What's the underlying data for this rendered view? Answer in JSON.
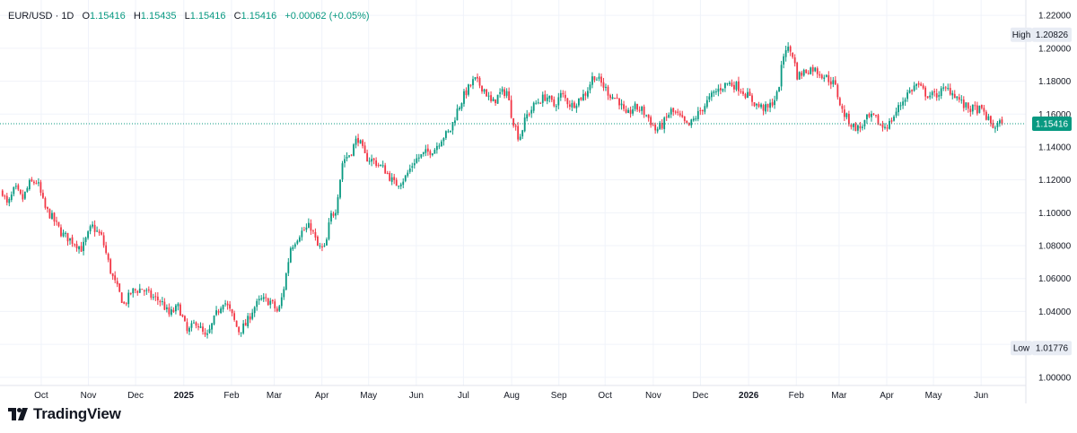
{
  "header": {
    "symbol": "EUR/USD",
    "separator": "·",
    "interval": "1D",
    "open_label": "O",
    "open": "1.15416",
    "high_label": "H",
    "high": "1.15435",
    "low_label": "L",
    "low": "1.15416",
    "close_label": "C",
    "close": "1.15416",
    "change": "+0.00062 (+0.05%)"
  },
  "brand": {
    "name": "TradingView",
    "icon": "tradingview-logo-icon"
  },
  "markers": {
    "high_label": "High",
    "high_value": "1.20826",
    "low_label": "Low",
    "low_value": "1.01776",
    "last_value": "1.15416"
  },
  "colors": {
    "up": "#089981",
    "down": "#F23645",
    "price_line": "#089981",
    "grid": "#F0F3FA",
    "tag_bg": "#E8ECF4"
  },
  "chart_data": {
    "type": "candlestick",
    "title": "EUR/USD",
    "interval": "1D",
    "ylim": [
      0.995,
      1.225
    ],
    "y_ticks": [
      "1.22000",
      "1.20000",
      "1.18000",
      "1.16000",
      "1.14000",
      "1.12000",
      "1.10000",
      "1.08000",
      "1.06000",
      "1.04000",
      "1.02000",
      "1.00000"
    ],
    "x_labels": [
      {
        "label": "Oct",
        "t": 0.078
      },
      {
        "label": "Nov",
        "t": 0.173
      },
      {
        "label": "Dec",
        "t": 0.268
      },
      {
        "label": "2025",
        "t": 0.365,
        "bold": true
      },
      {
        "label": "Feb",
        "t": 0.461
      },
      {
        "label": "Mar",
        "t": 0.547
      },
      {
        "label": "Apr",
        "t": 0.643
      },
      {
        "label": "May",
        "t": 0.737
      },
      {
        "label": "Jun",
        "t": 0.833
      },
      {
        "label": "Jul",
        "t": 0.928
      },
      {
        "label": "Aug",
        "t": 1.025
      },
      {
        "label": "Sep",
        "t": 1.12
      },
      {
        "label": "Oct",
        "t": 1.213
      },
      {
        "label": "Nov",
        "t": 1.31
      },
      {
        "label": "Dec",
        "t": 1.405
      },
      {
        "label": "2026",
        "t": 1.502,
        "bold": true
      },
      {
        "label": "Feb",
        "t": 1.598
      },
      {
        "label": "Mar",
        "t": 1.684
      },
      {
        "label": "Apr",
        "t": 1.78
      },
      {
        "label": "May",
        "t": 1.874
      },
      {
        "label": "Jun",
        "t": 1.97
      }
    ],
    "t_range": [
      -0.005,
      2.06
    ],
    "path_points": [
      [
        0.0,
        1.113
      ],
      [
        0.01,
        1.104
      ],
      [
        0.025,
        1.115
      ],
      [
        0.04,
        1.108
      ],
      [
        0.055,
        1.118
      ],
      [
        0.07,
        1.119
      ],
      [
        0.085,
        1.103
      ],
      [
        0.1,
        1.097
      ],
      [
        0.12,
        1.087
      ],
      [
        0.145,
        1.082
      ],
      [
        0.16,
        1.078
      ],
      [
        0.18,
        1.092
      ],
      [
        0.2,
        1.085
      ],
      [
        0.22,
        1.062
      ],
      [
        0.245,
        1.044
      ],
      [
        0.26,
        1.052
      ],
      [
        0.28,
        1.054
      ],
      [
        0.3,
        1.049
      ],
      [
        0.32,
        1.046
      ],
      [
        0.335,
        1.038
      ],
      [
        0.355,
        1.043
      ],
      [
        0.372,
        1.027
      ],
      [
        0.39,
        1.034
      ],
      [
        0.41,
        1.023
      ],
      [
        0.43,
        1.038
      ],
      [
        0.445,
        1.047
      ],
      [
        0.46,
        1.039
      ],
      [
        0.475,
        1.028
      ],
      [
        0.49,
        1.032
      ],
      [
        0.505,
        1.042
      ],
      [
        0.52,
        1.047
      ],
      [
        0.54,
        1.046
      ],
      [
        0.555,
        1.039
      ],
      [
        0.565,
        1.052
      ],
      [
        0.58,
        1.079
      ],
      [
        0.6,
        1.088
      ],
      [
        0.62,
        1.092
      ],
      [
        0.635,
        1.079
      ],
      [
        0.65,
        1.078
      ],
      [
        0.66,
        1.098
      ],
      [
        0.67,
        1.101
      ],
      [
        0.685,
        1.132
      ],
      [
        0.7,
        1.136
      ],
      [
        0.715,
        1.146
      ],
      [
        0.73,
        1.134
      ],
      [
        0.75,
        1.131
      ],
      [
        0.77,
        1.126
      ],
      [
        0.79,
        1.117
      ],
      [
        0.81,
        1.121
      ],
      [
        0.83,
        1.132
      ],
      [
        0.85,
        1.136
      ],
      [
        0.87,
        1.139
      ],
      [
        0.885,
        1.146
      ],
      [
        0.9,
        1.149
      ],
      [
        0.915,
        1.162
      ],
      [
        0.93,
        1.172
      ],
      [
        0.95,
        1.181
      ],
      [
        0.97,
        1.175
      ],
      [
        0.985,
        1.166
      ],
      [
        1.0,
        1.172
      ],
      [
        1.015,
        1.174
      ],
      [
        1.025,
        1.159
      ],
      [
        1.04,
        1.145
      ],
      [
        1.055,
        1.159
      ],
      [
        1.075,
        1.167
      ],
      [
        1.095,
        1.171
      ],
      [
        1.11,
        1.165
      ],
      [
        1.125,
        1.172
      ],
      [
        1.145,
        1.165
      ],
      [
        1.16,
        1.169
      ],
      [
        1.175,
        1.173
      ],
      [
        1.19,
        1.184
      ],
      [
        1.21,
        1.177
      ],
      [
        1.225,
        1.171
      ],
      [
        1.24,
        1.169
      ],
      [
        1.255,
        1.158
      ],
      [
        1.27,
        1.164
      ],
      [
        1.285,
        1.163
      ],
      [
        1.3,
        1.158
      ],
      [
        1.315,
        1.15
      ],
      [
        1.33,
        1.154
      ],
      [
        1.345,
        1.162
      ],
      [
        1.36,
        1.159
      ],
      [
        1.38,
        1.152
      ],
      [
        1.395,
        1.158
      ],
      [
        1.415,
        1.166
      ],
      [
        1.43,
        1.172
      ],
      [
        1.445,
        1.176
      ],
      [
        1.46,
        1.179
      ],
      [
        1.48,
        1.177
      ],
      [
        1.5,
        1.171
      ],
      [
        1.52,
        1.165
      ],
      [
        1.54,
        1.163
      ],
      [
        1.56,
        1.172
      ],
      [
        1.575,
        1.201
      ],
      [
        1.59,
        1.197
      ],
      [
        1.6,
        1.183
      ],
      [
        1.615,
        1.186
      ],
      [
        1.63,
        1.188
      ],
      [
        1.645,
        1.185
      ],
      [
        1.66,
        1.182
      ],
      [
        1.675,
        1.178
      ],
      [
        1.69,
        1.162
      ],
      [
        1.71,
        1.153
      ],
      [
        1.725,
        1.151
      ],
      [
        1.74,
        1.157
      ],
      [
        1.755,
        1.158
      ],
      [
        1.77,
        1.152
      ],
      [
        1.785,
        1.154
      ],
      [
        1.8,
        1.162
      ],
      [
        1.82,
        1.172
      ],
      [
        1.84,
        1.178
      ],
      [
        1.86,
        1.172
      ],
      [
        1.875,
        1.171
      ],
      [
        1.89,
        1.174
      ],
      [
        1.905,
        1.175
      ],
      [
        1.92,
        1.171
      ],
      [
        1.935,
        1.165
      ],
      [
        1.95,
        1.163
      ],
      [
        1.965,
        1.163
      ],
      [
        1.975,
        1.161
      ],
      [
        1.985,
        1.156
      ],
      [
        1.995,
        1.152
      ],
      [
        2.005,
        1.154
      ],
      [
        2.012,
        1.1542
      ]
    ],
    "annotations": [
      "High 1.20826",
      "Low 1.01776"
    ]
  }
}
